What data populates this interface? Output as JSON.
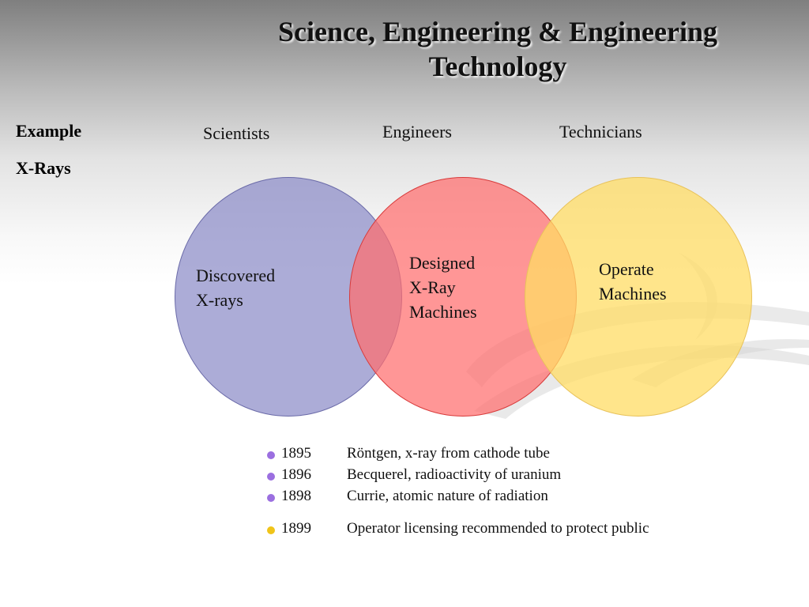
{
  "title": "Science, Engineering & Engineering Technology",
  "side": {
    "example": "Example",
    "topic": "X-Rays"
  },
  "columns": {
    "scientists": "Scientists",
    "engineers": "Engineers",
    "technicians": "Technicians"
  },
  "circles": {
    "scientists": {
      "line1": "Discovered",
      "line2": "X-rays",
      "color": "#8c8cc8"
    },
    "engineers": {
      "line1": "Designed",
      "line2": "X-Ray",
      "line3": "Machines",
      "color": "#ff6e6e"
    },
    "technicians": {
      "line1": "Operate",
      "line2": "Machines",
      "color": "#ffdc64"
    }
  },
  "timeline": [
    {
      "year": "1895",
      "text": "Röntgen, x-ray from cathode tube",
      "bullet_color": "#9b6fe0"
    },
    {
      "year": "1896",
      "text": "Becquerel, radioactivity of uranium",
      "bullet_color": "#9b6fe0"
    },
    {
      "year": "1898",
      "text": "Currie, atomic nature of radiation",
      "bullet_color": "#9b6fe0"
    },
    {
      "year": "1899",
      "text": "Operator licensing recommended to protect public",
      "bullet_color": "#f0c419"
    }
  ]
}
